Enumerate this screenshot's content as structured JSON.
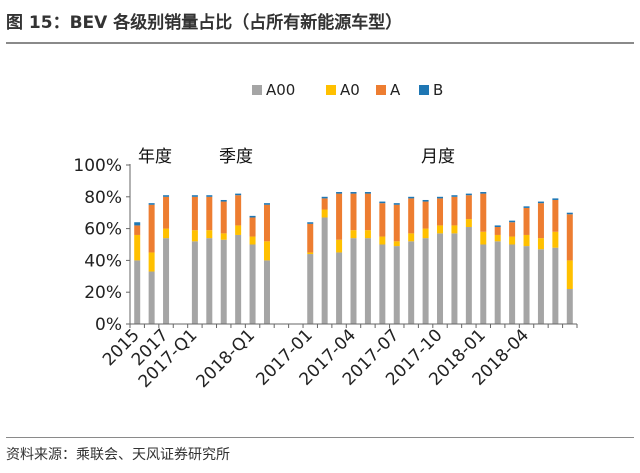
{
  "figure": {
    "title": "图 15：BEV 各级别销量占比（占所有新能源车型）",
    "source": "资料来源：乘联会、天风证券研究所"
  },
  "chart_data": {
    "type": "bar",
    "stacked": true,
    "ylim": [
      0,
      100
    ],
    "yticks": [
      "0%",
      "20%",
      "40%",
      "60%",
      "80%",
      "100%"
    ],
    "grid": false,
    "legend_position": "top",
    "group_labels": [
      "年度",
      "季度",
      "月度"
    ],
    "colors": {
      "A00": "#a5a5a5",
      "A0": "#ffc000",
      "A": "#ed7d31",
      "B": "#1f77b4"
    },
    "series": [
      {
        "name": "A00",
        "values": [
          40,
          33,
          54,
          null,
          52,
          54,
          53,
          56,
          50,
          40,
          null,
          null,
          44,
          67,
          45,
          54,
          54,
          50,
          49,
          52,
          54,
          57,
          57,
          61,
          50,
          52,
          50,
          49,
          47,
          48,
          22
        ]
      },
      {
        "name": "A0",
        "values": [
          16,
          12,
          6,
          null,
          7,
          5,
          4,
          6,
          5,
          12,
          null,
          null,
          1,
          5,
          8,
          5,
          5,
          5,
          3,
          5,
          6,
          5,
          5,
          5,
          8,
          4,
          5,
          7,
          7,
          10,
          18
        ]
      },
      {
        "name": "A",
        "values": [
          6,
          30,
          20,
          null,
          21,
          21,
          20,
          19,
          12,
          23,
          null,
          null,
          18,
          7,
          29,
          23,
          23,
          21,
          23,
          22,
          17,
          17,
          18,
          15,
          24,
          5,
          9,
          17,
          22,
          20,
          29
        ]
      },
      {
        "name": "B",
        "values": [
          2,
          1,
          1,
          null,
          1,
          1,
          1,
          1,
          1,
          1,
          null,
          null,
          1,
          1,
          1,
          1,
          1,
          1,
          1,
          1,
          1,
          1,
          1,
          1,
          1,
          1,
          1,
          1,
          1,
          1,
          1
        ]
      }
    ],
    "xtick_labels": [
      {
        "index": 0,
        "label": "2015"
      },
      {
        "index": 2,
        "label": "2017"
      },
      {
        "index": 4,
        "label": "2017-Q1"
      },
      {
        "index": 8,
        "label": "2018-Q1"
      },
      {
        "index": 12,
        "label": "2017-01"
      },
      {
        "index": 15,
        "label": "2017-04"
      },
      {
        "index": 18,
        "label": "2017-07"
      },
      {
        "index": 21,
        "label": "2017-10"
      },
      {
        "index": 24,
        "label": "2018-01"
      },
      {
        "index": 27,
        "label": "2018-04"
      }
    ]
  }
}
